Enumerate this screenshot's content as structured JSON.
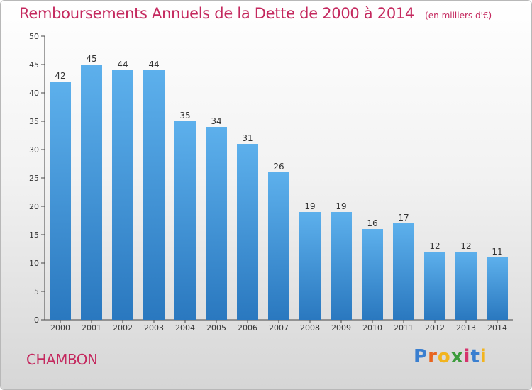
{
  "chart_data": {
    "type": "bar",
    "title": "Remboursements Annuels de la Dette de 2000 à 2014",
    "unit": "(en milliers d'€)",
    "categories": [
      "2000",
      "2001",
      "2002",
      "2003",
      "2004",
      "2005",
      "2006",
      "2007",
      "2008",
      "2009",
      "2010",
      "2011",
      "2012",
      "2013",
      "2014"
    ],
    "values": [
      42,
      45,
      44,
      44,
      35,
      34,
      31,
      26,
      19,
      19,
      16,
      17,
      12,
      12,
      11
    ],
    "ylim": [
      0,
      50
    ],
    "yticks": [
      0,
      5,
      10,
      15,
      20,
      25,
      30,
      35,
      40,
      45,
      50
    ],
    "grid": false,
    "bar_color": "#3a8fd6"
  },
  "commune": "CHAMBON",
  "brand": {
    "letters": [
      "P",
      "r",
      "o",
      "x",
      "i",
      "t",
      "i"
    ],
    "colors": [
      "#3a7fd0",
      "#e8641e",
      "#f2b41e",
      "#3c9c3c",
      "#d6336c",
      "#3a7fd0",
      "#f2b41e"
    ]
  }
}
